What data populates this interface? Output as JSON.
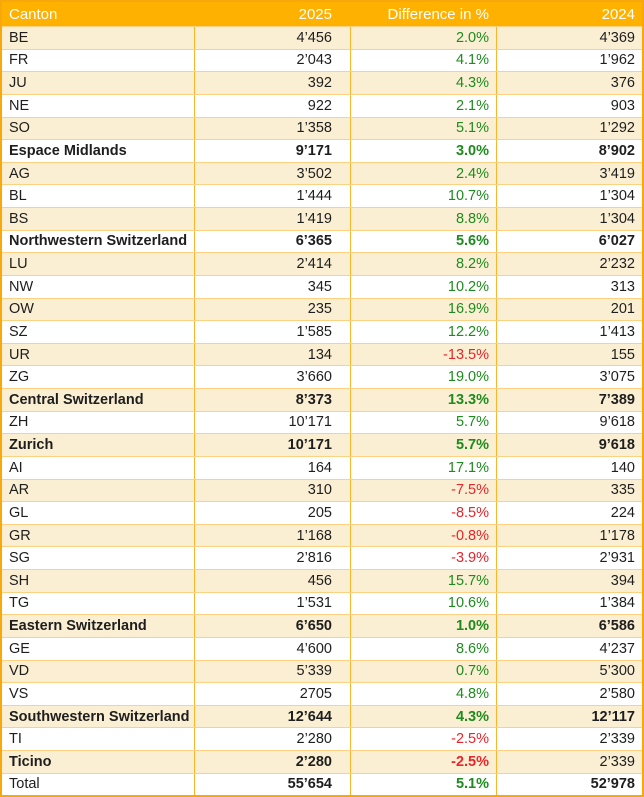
{
  "colors": {
    "header_bg": "#FFB100",
    "header_text": "#FFFFFF",
    "band_bg": "#FBEFD3",
    "positive_pct": "#1E8B1E",
    "negative_pct": "#E5262C",
    "border_outer": "#F8A80D",
    "border_horizontal": "#FCD181",
    "border_vertical": "#FBB52D",
    "text": "#1E1E1E"
  },
  "chart_data": {
    "type": "table",
    "columns": [
      "Canton",
      "2025",
      "Difference in %",
      "2024"
    ],
    "rows": [
      {
        "canton": "BE",
        "y2025": "4’456",
        "diff": "2.0%",
        "y2024": "4’369",
        "kind": "canton"
      },
      {
        "canton": "FR",
        "y2025": "2’043",
        "diff": "4.1%",
        "y2024": "1’962",
        "kind": "canton"
      },
      {
        "canton": "JU",
        "y2025": "392",
        "diff": "4.3%",
        "y2024": "376",
        "kind": "canton"
      },
      {
        "canton": "NE",
        "y2025": "922",
        "diff": "2.1%",
        "y2024": "903",
        "kind": "canton"
      },
      {
        "canton": "SO",
        "y2025": "1’358",
        "diff": "5.1%",
        "y2024": "1’292",
        "kind": "canton"
      },
      {
        "canton": "Espace Midlands",
        "y2025": "9’171",
        "diff": "3.0%",
        "y2024": "8’902",
        "kind": "group"
      },
      {
        "canton": "AG",
        "y2025": "3’502",
        "diff": "2.4%",
        "y2024": "3’419",
        "kind": "canton"
      },
      {
        "canton": "BL",
        "y2025": "1’444",
        "diff": "10.7%",
        "y2024": "1’304",
        "kind": "canton"
      },
      {
        "canton": "BS",
        "y2025": "1’419",
        "diff": "8.8%",
        "y2024": "1’304",
        "kind": "canton"
      },
      {
        "canton": "Northwestern Switzerland",
        "y2025": "6’365",
        "diff": "5.6%",
        "y2024": "6’027",
        "kind": "group"
      },
      {
        "canton": "LU",
        "y2025": "2’414",
        "diff": "8.2%",
        "y2024": "2’232",
        "kind": "canton"
      },
      {
        "canton": "NW",
        "y2025": "345",
        "diff": "10.2%",
        "y2024": "313",
        "kind": "canton"
      },
      {
        "canton": "OW",
        "y2025": "235",
        "diff": "16.9%",
        "y2024": "201",
        "kind": "canton"
      },
      {
        "canton": "SZ",
        "y2025": "1’585",
        "diff": "12.2%",
        "y2024": "1’413",
        "kind": "canton"
      },
      {
        "canton": "UR",
        "y2025": "134",
        "diff": "-13.5%",
        "y2024": "155",
        "kind": "canton"
      },
      {
        "canton": "ZG",
        "y2025": "3’660",
        "diff": "19.0%",
        "y2024": "3’075",
        "kind": "canton"
      },
      {
        "canton": "Central Switzerland",
        "y2025": "8’373",
        "diff": "13.3%",
        "y2024": "7’389",
        "kind": "group"
      },
      {
        "canton": "ZH",
        "y2025": "10’171",
        "diff": "5.7%",
        "y2024": "9’618",
        "kind": "canton"
      },
      {
        "canton": "Zurich",
        "y2025": "10’171",
        "diff": "5.7%",
        "y2024": "9’618",
        "kind": "group"
      },
      {
        "canton": "AI",
        "y2025": "164",
        "diff": "17.1%",
        "y2024": "140",
        "kind": "canton"
      },
      {
        "canton": "AR",
        "y2025": "310",
        "diff": "-7.5%",
        "y2024": "335",
        "kind": "canton"
      },
      {
        "canton": "GL",
        "y2025": "205",
        "diff": "-8.5%",
        "y2024": "224",
        "kind": "canton"
      },
      {
        "canton": "GR",
        "y2025": "1’168",
        "diff": "-0.8%",
        "y2024": "1’178",
        "kind": "canton"
      },
      {
        "canton": "SG",
        "y2025": "2’816",
        "diff": "-3.9%",
        "y2024": "2’931",
        "kind": "canton"
      },
      {
        "canton": "SH",
        "y2025": "456",
        "diff": "15.7%",
        "y2024": "394",
        "kind": "canton"
      },
      {
        "canton": "TG",
        "y2025": "1’531",
        "diff": "10.6%",
        "y2024": "1’384",
        "kind": "canton"
      },
      {
        "canton": "Eastern Switzerland",
        "y2025": "6’650",
        "diff": "1.0%",
        "y2024": "6’586",
        "kind": "group"
      },
      {
        "canton": "GE",
        "y2025": "4’600",
        "diff": "8.6%",
        "y2024": "4’237",
        "kind": "canton"
      },
      {
        "canton": "VD",
        "y2025": "5’339",
        "diff": "0.7%",
        "y2024": "5’300",
        "kind": "canton"
      },
      {
        "canton": "VS",
        "y2025": "2705",
        "diff": "4.8%",
        "y2024": "2’580",
        "kind": "canton"
      },
      {
        "canton": "Southwestern Switzerland",
        "y2025": "12’644",
        "diff": "4.3%",
        "y2024": "12’117",
        "kind": "group"
      },
      {
        "canton": "TI",
        "y2025": "2’280",
        "diff": "-2.5%",
        "y2024": "2’339",
        "kind": "canton"
      },
      {
        "canton": "Ticino",
        "y2025": "2’280",
        "diff": "-2.5%",
        "y2024": "2’339",
        "kind": "group",
        "y2024_regular": true
      },
      {
        "canton": "Total",
        "y2025": "55’654",
        "diff": "5.1%",
        "y2024": "52’978",
        "kind": "total",
        "label_regular": true
      }
    ]
  }
}
